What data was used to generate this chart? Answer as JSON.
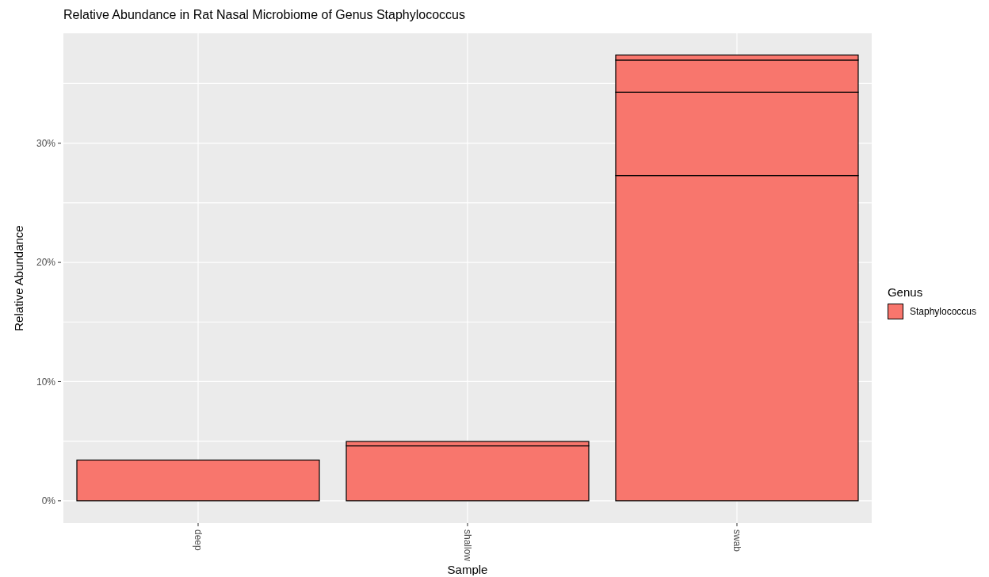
{
  "chart_data": {
    "type": "bar",
    "title": "Relative Abundance in Rat Nasal Microbiome of Genus Staphylococcus",
    "xlabel": "Sample",
    "ylabel": "Relative Abundance",
    "legend_title": "Genus",
    "categories": [
      "deep",
      "shallow",
      "swab"
    ],
    "stacked": true,
    "series": [
      {
        "name": "Staphylococcus",
        "color": "#f8766d",
        "values": [
          3.42,
          4.61,
          27.28
        ]
      },
      {
        "color": "#f8766d",
        "values": [
          null,
          0.37,
          7.0
        ]
      },
      {
        "color": "#f8766d",
        "values": [
          null,
          null,
          2.69
        ]
      },
      {
        "color": "#f8766d",
        "values": [
          null,
          null,
          0.43
        ]
      }
    ],
    "ylim": [
      -1.87,
      39.22
    ],
    "yticks": [
      {
        "value": 0,
        "label": "0%"
      },
      {
        "value": 5,
        "label": null
      },
      {
        "value": 10,
        "label": "10%"
      },
      {
        "value": 15,
        "label": null
      },
      {
        "value": 20,
        "label": "20%"
      },
      {
        "value": 25,
        "label": null
      },
      {
        "value": 30,
        "label": "30%"
      },
      {
        "value": 35,
        "label": null
      }
    ],
    "grid": true,
    "legend": "right"
  }
}
